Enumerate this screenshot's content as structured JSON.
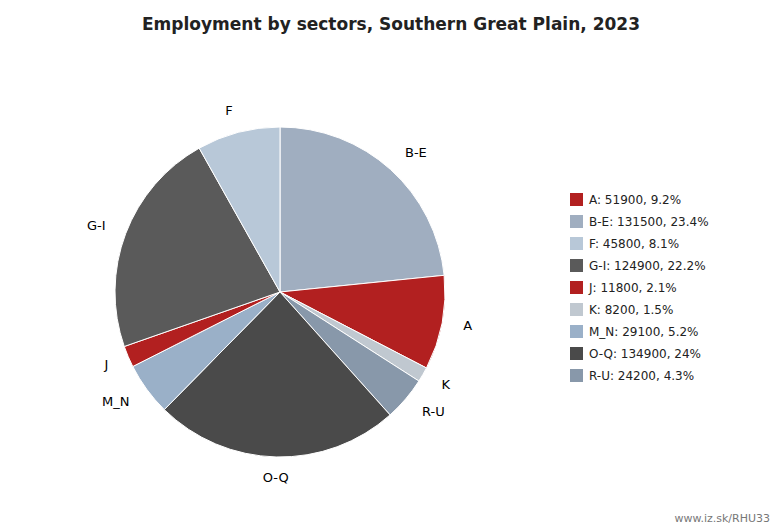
{
  "chart_data": {
    "type": "pie",
    "title": "Employment by sectors, Southern Great Plain, 2023",
    "categories": [
      "B-E",
      "A",
      "K",
      "R-U",
      "O-Q",
      "M_N",
      "J",
      "G-I",
      "F"
    ],
    "values": [
      131500,
      51900,
      8200,
      24200,
      134900,
      29100,
      11800,
      124900,
      45800
    ],
    "colors": [
      "#a0aec0",
      "#b22020",
      "#c0c8d0",
      "#8898aa",
      "#4a4a4a",
      "#9ab0c8",
      "#b22020",
      "#5a5a5a",
      "#b8c8d8"
    ],
    "legend": "right",
    "legend_labels": [
      "A: 51900, 9.2%",
      "B-E: 131500, 23.4%",
      "F: 45800, 8.1%",
      "G-I: 124900, 22.2%",
      "J: 11800, 2.1%",
      "K: 8200, 1.5%",
      "M_N: 29100, 5.2%",
      "O-Q: 134900, 24%",
      "R-U: 24200, 4.3%"
    ],
    "legend_colors": [
      "#b22020",
      "#a0aec0",
      "#b8c8d8",
      "#5a5a5a",
      "#b22020",
      "#c0c8d0",
      "#9ab0c8",
      "#4a4a4a",
      "#8898aa"
    ],
    "annotations": [
      {
        "text": "www.iz.sk/RHU33"
      }
    ]
  }
}
